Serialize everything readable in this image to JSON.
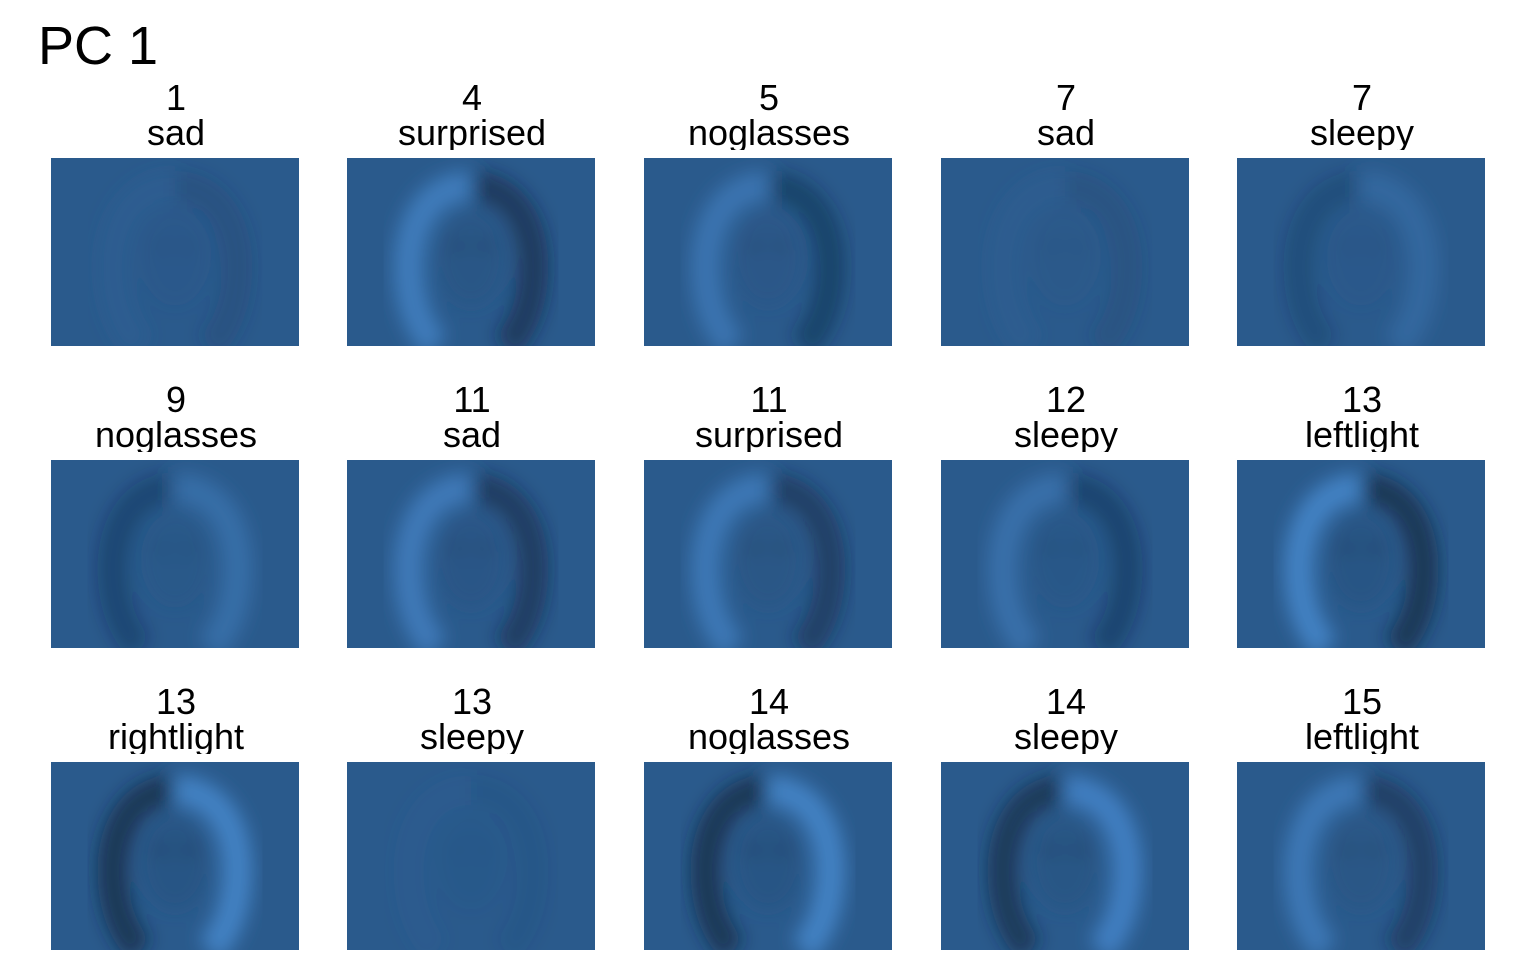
{
  "title": "PC 1",
  "tint": "#2a5a8c",
  "panels": [
    {
      "id": "1",
      "condition": "sad",
      "light": "neutral",
      "strength": 0.35
    },
    {
      "id": "4",
      "condition": "surprised",
      "light": "left",
      "strength": 0.85
    },
    {
      "id": "5",
      "condition": "noglasses",
      "light": "left",
      "strength": 0.65
    },
    {
      "id": "7",
      "condition": "sad",
      "light": "neutral",
      "strength": 0.3
    },
    {
      "id": "7",
      "condition": "sleepy",
      "light": "right",
      "strength": 0.35
    },
    {
      "id": "9",
      "condition": "noglasses",
      "light": "right",
      "strength": 0.5
    },
    {
      "id": "11",
      "condition": "sad",
      "light": "left",
      "strength": 0.8
    },
    {
      "id": "11",
      "condition": "surprised",
      "light": "left",
      "strength": 0.75
    },
    {
      "id": "12",
      "condition": "sleepy",
      "light": "left",
      "strength": 0.55
    },
    {
      "id": "13",
      "condition": "leftlight",
      "light": "left",
      "strength": 1.0
    },
    {
      "id": "13",
      "condition": "rightlight",
      "light": "right",
      "strength": 1.0
    },
    {
      "id": "13",
      "condition": "sleepy",
      "light": "neutral",
      "strength": 0.15
    },
    {
      "id": "14",
      "condition": "noglasses",
      "light": "right",
      "strength": 1.0
    },
    {
      "id": "14",
      "condition": "sleepy",
      "light": "right",
      "strength": 0.95
    },
    {
      "id": "15",
      "condition": "leftlight",
      "light": "left",
      "strength": 0.75
    }
  ]
}
